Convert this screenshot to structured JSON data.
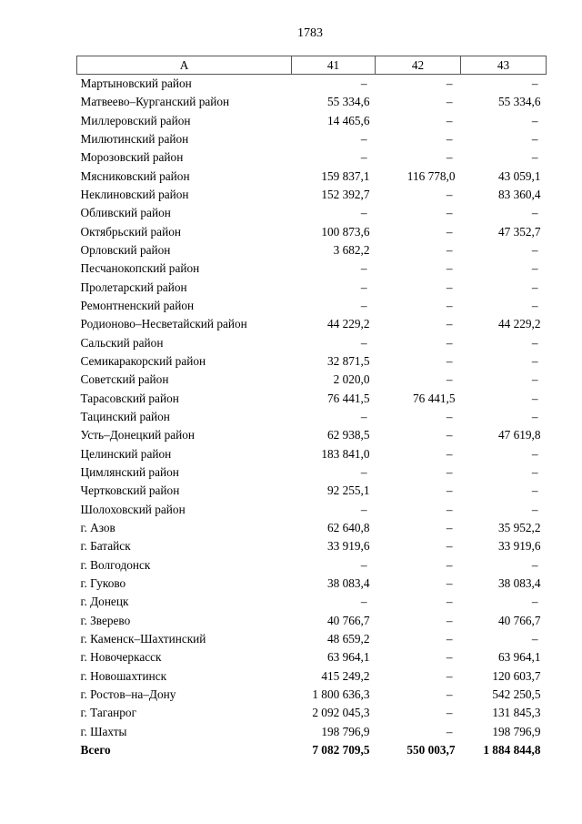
{
  "page_number": "1783",
  "table": {
    "headers": [
      "А",
      "41",
      "42",
      "43"
    ],
    "rows": [
      [
        "Мартыновский район",
        "–",
        "–",
        "–"
      ],
      [
        "Матвеево–Курганский район",
        "55 334,6",
        "–",
        "55 334,6"
      ],
      [
        "Миллеровский район",
        "14 465,6",
        "–",
        "–"
      ],
      [
        "Милютинский район",
        "–",
        "–",
        "–"
      ],
      [
        "Морозовский район",
        "–",
        "–",
        "–"
      ],
      [
        "Мясниковский район",
        "159 837,1",
        "116 778,0",
        "43 059,1"
      ],
      [
        "Неклиновский район",
        "152 392,7",
        "–",
        "83 360,4"
      ],
      [
        "Обливский район",
        "–",
        "–",
        "–"
      ],
      [
        "Октябрьский район",
        "100 873,6",
        "–",
        "47 352,7"
      ],
      [
        "Орловский район",
        "3 682,2",
        "–",
        "–"
      ],
      [
        "Песчанокопский район",
        "–",
        "–",
        "–"
      ],
      [
        "Пролетарский район",
        "–",
        "–",
        "–"
      ],
      [
        "Ремонтненский район",
        "–",
        "–",
        "–"
      ],
      [
        "Родионово–Несветайский район",
        "44 229,2",
        "–",
        "44 229,2"
      ],
      [
        "Сальский район",
        "–",
        "–",
        "–"
      ],
      [
        "Семикаракорский район",
        "32 871,5",
        "–",
        "–"
      ],
      [
        "Советский район",
        "2 020,0",
        "–",
        "–"
      ],
      [
        "Тарасовский район",
        "76 441,5",
        "76 441,5",
        "–"
      ],
      [
        "Тацинский район",
        "–",
        "–",
        "–"
      ],
      [
        "Усть–Донецкий район",
        "62 938,5",
        "–",
        "47 619,8"
      ],
      [
        "Целинский район",
        "183 841,0",
        "–",
        "–"
      ],
      [
        "Цимлянский район",
        "–",
        "–",
        "–"
      ],
      [
        "Чертковский район",
        "92 255,1",
        "–",
        "–"
      ],
      [
        "Шолоховский район",
        "–",
        "–",
        "–"
      ],
      [
        "г. Азов",
        "62 640,8",
        "–",
        "35 952,2"
      ],
      [
        "г. Батайск",
        "33 919,6",
        "–",
        "33 919,6"
      ],
      [
        "г. Волгодонск",
        "–",
        "–",
        "–"
      ],
      [
        "г. Гуково",
        "38 083,4",
        "–",
        "38 083,4"
      ],
      [
        "г. Донецк",
        "–",
        "–",
        "–"
      ],
      [
        "г. Зверево",
        "40 766,7",
        "–",
        "40 766,7"
      ],
      [
        "г. Каменск–Шахтинский",
        "48 659,2",
        "–",
        "–"
      ],
      [
        "г. Новочеркасск",
        "63 964,1",
        "–",
        "63 964,1"
      ],
      [
        "г. Новошахтинск",
        "415 249,2",
        "–",
        "120 603,7"
      ],
      [
        "г. Ростов–на–Дону",
        "1 800 636,3",
        "–",
        "542 250,5"
      ],
      [
        "г. Таганрог",
        "2 092 045,3",
        "–",
        "131 845,3"
      ],
      [
        "г. Шахты",
        "198 796,9",
        "–",
        "198 796,9"
      ]
    ],
    "total": [
      "Всего",
      "7 082 709,5",
      "550 003,7",
      "1 884 844,8"
    ]
  }
}
